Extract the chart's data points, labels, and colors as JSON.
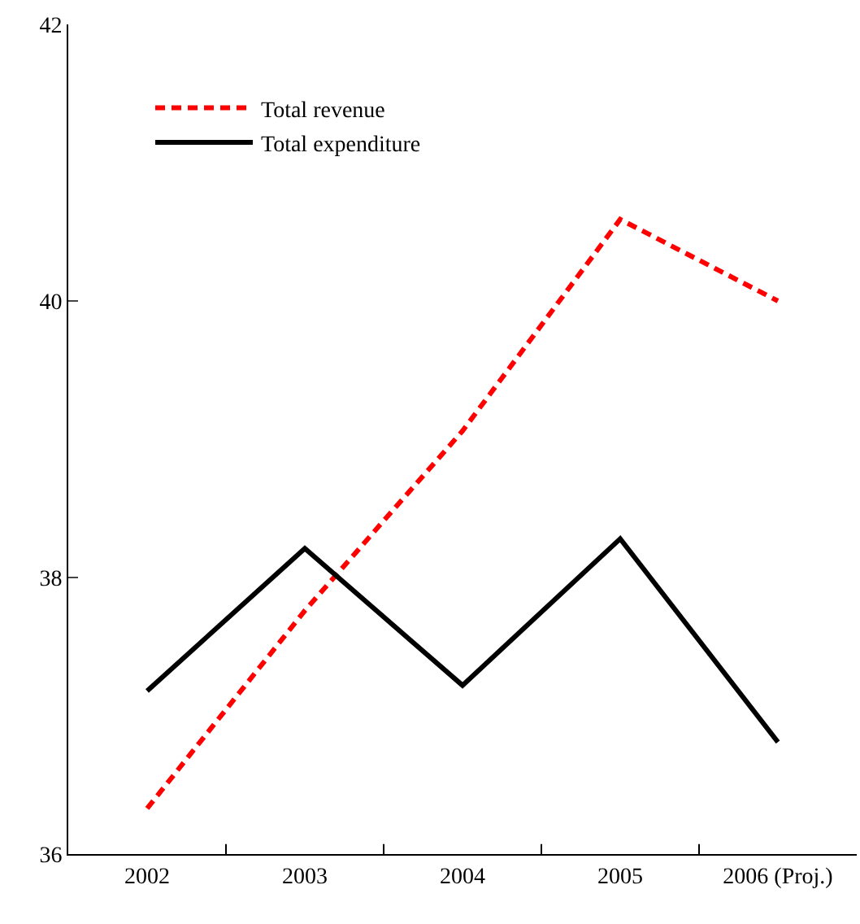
{
  "chart_data": {
    "type": "line",
    "categories": [
      "2002",
      "2003",
      "2004",
      "2005",
      "2006 (Proj.)"
    ],
    "series": [
      {
        "name": "Total revenue",
        "color": "#ff0000",
        "line_style": "dashed",
        "values": [
          36.33,
          37.76,
          39.06,
          40.59,
          40.0
        ]
      },
      {
        "name": "Total expenditure",
        "color": "#000000",
        "line_style": "solid",
        "values": [
          37.18,
          38.21,
          37.22,
          38.28,
          36.81
        ]
      }
    ],
    "ylim": [
      36,
      42
    ],
    "yticks": [
      36,
      38,
      40,
      42
    ],
    "legend": "top left",
    "marker": "none"
  }
}
